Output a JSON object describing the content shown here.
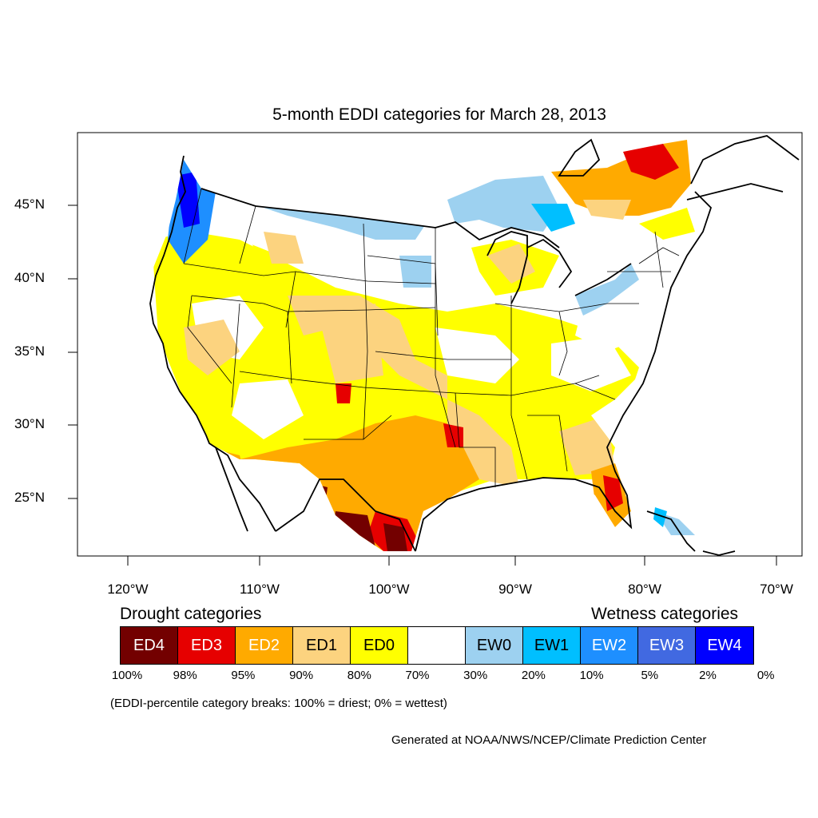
{
  "title": "5-month EDDI categories for March 28, 2013",
  "lat_labels": [
    "45°N",
    "40°N",
    "35°N",
    "30°N",
    "25°N"
  ],
  "lon_labels": [
    "120°W",
    "110°W",
    "100°W",
    "90°W",
    "80°W",
    "70°W"
  ],
  "legend": {
    "drought_heading": "Drought categories",
    "wetness_heading": "Wetness categories",
    "categories": [
      {
        "label": "ED4",
        "color": "#730000",
        "text_color": "#ffffff"
      },
      {
        "label": "ED3",
        "color": "#e60000",
        "text_color": "#ffffff"
      },
      {
        "label": "ED2",
        "color": "#ffaa00",
        "text_color": "#ffffff"
      },
      {
        "label": "ED1",
        "color": "#fcd37f",
        "text_color": "#000000"
      },
      {
        "label": "ED0",
        "color": "#ffff00",
        "text_color": "#000000"
      },
      {
        "label": "",
        "color": "#ffffff",
        "text_color": "#000000"
      },
      {
        "label": "EW0",
        "color": "#9dd1f0",
        "text_color": "#000000"
      },
      {
        "label": "EW1",
        "color": "#00bfff",
        "text_color": "#000000"
      },
      {
        "label": "EW2",
        "color": "#1e8fff",
        "text_color": "#ffffff"
      },
      {
        "label": "EW3",
        "color": "#4169e1",
        "text_color": "#ffffff"
      },
      {
        "label": "EW4",
        "color": "#0000ff",
        "text_color": "#ffffff"
      }
    ],
    "breaks": [
      "100%",
      "98%",
      "95%",
      "90%",
      "80%",
      "70%",
      "30%",
      "20%",
      "10%",
      "5%",
      "2%",
      "0%"
    ]
  },
  "note": "(EDDI-percentile category breaks: 100% = driest; 0% = wettest)",
  "credit": "Generated at NOAA/NWS/NCEP/Climate Prediction Center"
}
